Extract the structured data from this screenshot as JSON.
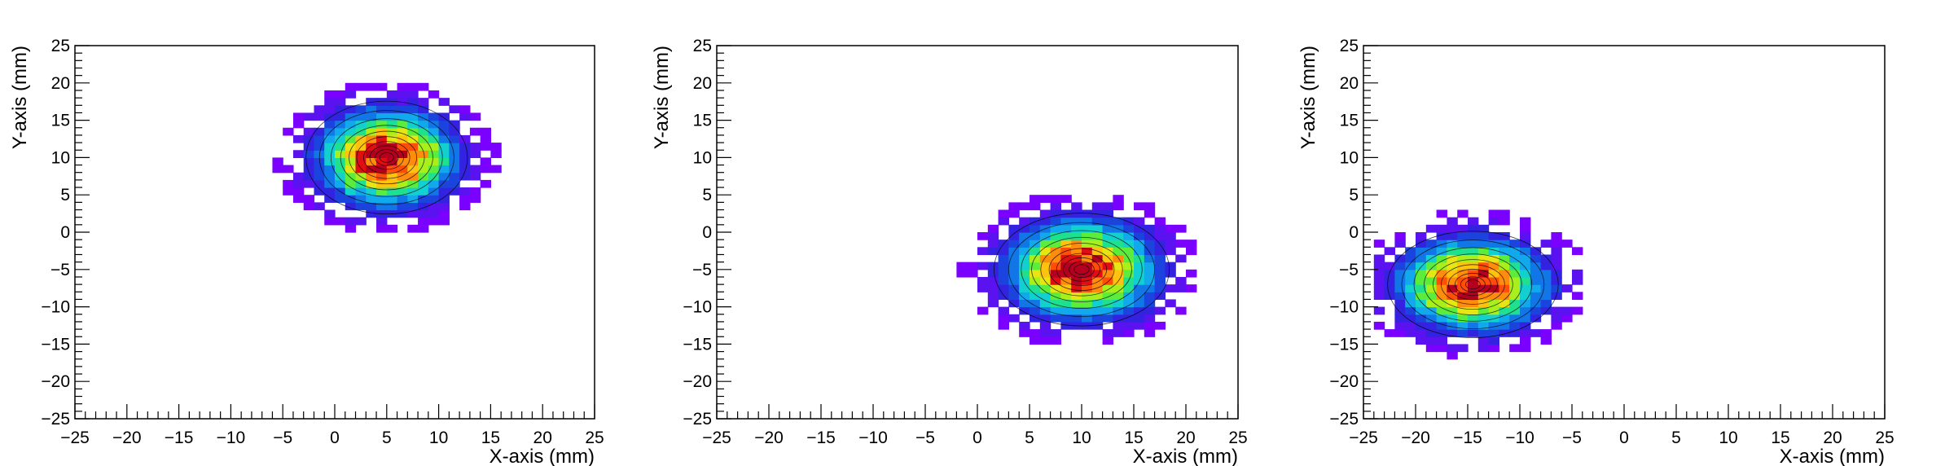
{
  "chart_data": [
    {
      "type": "heatmap",
      "title": "",
      "xlabel": "X-axis (mm)",
      "ylabel": "Y-axis (mm)",
      "xlim": [
        -25,
        25
      ],
      "ylim": [
        -25,
        25
      ],
      "xticks": [
        -25,
        -20,
        -15,
        -10,
        -5,
        0,
        5,
        10,
        15,
        20,
        25
      ],
      "yticks": [
        -25,
        -20,
        -15,
        -10,
        -5,
        0,
        5,
        10,
        15,
        20,
        25
      ],
      "grid": false,
      "blob": {
        "center": [
          5,
          10
        ],
        "sigma": [
          3.7,
          3.6
        ],
        "extent": [
          -6,
          16,
          -2,
          21
        ]
      }
    },
    {
      "type": "heatmap",
      "title": "",
      "xlabel": "X-axis (mm)",
      "ylabel": "Y-axis (mm)",
      "xlim": [
        -25,
        25
      ],
      "ylim": [
        -25,
        25
      ],
      "xticks": [
        -25,
        -20,
        -15,
        -10,
        -5,
        0,
        5,
        10,
        15,
        20,
        25
      ],
      "yticks": [
        -25,
        -20,
        -15,
        -10,
        -5,
        0,
        5,
        10,
        15,
        20,
        25
      ],
      "grid": false,
      "blob": {
        "center": [
          10,
          -5
        ],
        "sigma": [
          4.0,
          3.6
        ],
        "extent": [
          -2,
          22,
          -16,
          6
        ]
      }
    },
    {
      "type": "heatmap",
      "title": "",
      "xlabel": "X-axis (mm)",
      "ylabel": "Y-axis (mm)",
      "xlim": [
        -25,
        25
      ],
      "ylim": [
        -25,
        25
      ],
      "xticks": [
        -25,
        -20,
        -15,
        -10,
        -5,
        0,
        5,
        10,
        15,
        20,
        25
      ],
      "yticks": [
        -25,
        -20,
        -15,
        -10,
        -5,
        0,
        5,
        10,
        15,
        20,
        25
      ],
      "grid": false,
      "blob": {
        "center": [
          -14.5,
          -7
        ],
        "sigma": [
          3.9,
          3.4
        ],
        "extent": [
          -24,
          -4,
          -18,
          5
        ]
      }
    }
  ]
}
